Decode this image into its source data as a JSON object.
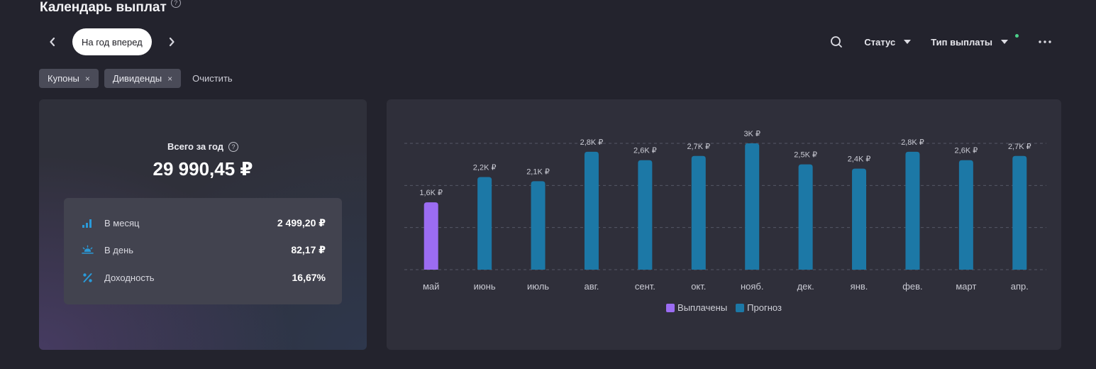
{
  "header": {
    "title": "Календарь выплат",
    "help": "?"
  },
  "nav": {
    "period_label": "На год вперед"
  },
  "controls": {
    "status_label": "Статус",
    "payment_type_label": "Тип выплаты"
  },
  "filters": {
    "chips": [
      {
        "label": "Купоны"
      },
      {
        "label": "Дивиденды"
      }
    ],
    "remove_glyph": "×",
    "clear_label": "Очистить"
  },
  "summary": {
    "label": "Всего за год",
    "help": "?",
    "total": "29 990,45 ₽",
    "stats": [
      {
        "label": "В месяц",
        "value": "2 499,20 ₽",
        "icon": "bar-chart-icon"
      },
      {
        "label": "В день",
        "value": "82,17 ₽",
        "icon": "sunrise-icon"
      },
      {
        "label": "Доходность",
        "value": "16,67%",
        "icon": "percent-icon"
      }
    ]
  },
  "colors": {
    "paid": "#9b6cf2",
    "forecast": "#1c78a6"
  },
  "chart_data": {
    "type": "bar",
    "categories": [
      "май",
      "июнь",
      "июль",
      "авг.",
      "сент.",
      "окт.",
      "нояб.",
      "дек.",
      "янв.",
      "фев.",
      "март",
      "апр."
    ],
    "series": [
      {
        "name": "Выплачены",
        "values": [
          1.6,
          null,
          null,
          null,
          null,
          null,
          null,
          null,
          null,
          null,
          null,
          null
        ]
      },
      {
        "name": "Прогноз",
        "values": [
          null,
          2.2,
          2.1,
          2.8,
          2.6,
          2.7,
          3.0,
          2.5,
          2.4,
          2.8,
          2.6,
          2.7
        ]
      }
    ],
    "value_labels": [
      "1,6K ₽",
      "2,2K ₽",
      "2,1K ₽",
      "2,8K ₽",
      "2,6K ₽",
      "2,7K ₽",
      "3K ₽",
      "2,5K ₽",
      "2,4K ₽",
      "2,8K ₽",
      "2,6K ₽",
      "2,7K ₽"
    ],
    "unit": "тыс. ₽",
    "ylim": [
      0,
      3
    ],
    "grid": true,
    "legend_position": "bottom-center"
  }
}
